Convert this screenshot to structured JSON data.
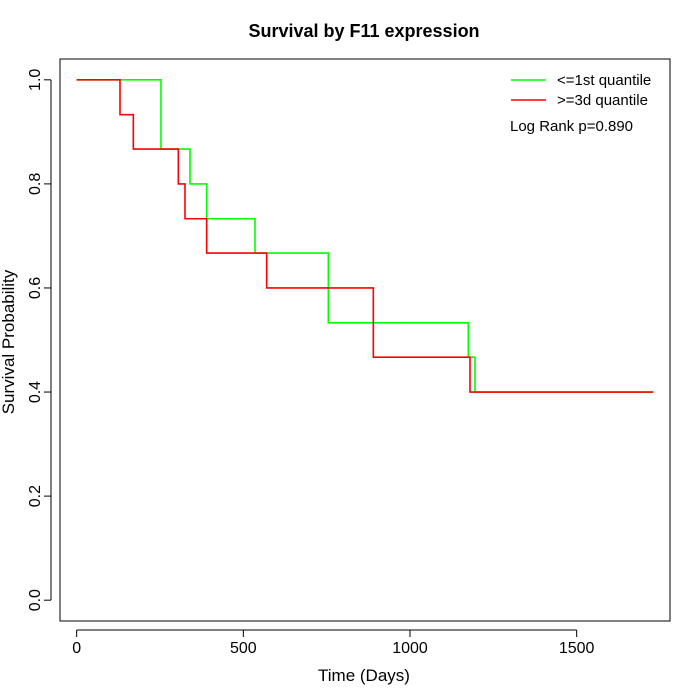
{
  "chart_data": {
    "type": "line",
    "subtype": "kaplan-meier step",
    "title": "Survival by F11 expression",
    "xlabel": "Time (Days)",
    "ylabel": "Survival Probability",
    "xlim": [
      -50,
      1780
    ],
    "ylim": [
      -0.04,
      1.04
    ],
    "xticks": [
      0,
      500,
      1000,
      1500
    ],
    "yticks": [
      0.0,
      0.2,
      0.4,
      0.6,
      0.8,
      1.0
    ],
    "xtick_labels": [
      "0",
      "500",
      "1000",
      "1500"
    ],
    "ytick_labels": [
      "0.0",
      "0.2",
      "0.4",
      "0.6",
      "0.8",
      "1.0"
    ],
    "grid": false,
    "legend_position": "top-right",
    "annotation": "Log Rank p=0.890",
    "series": [
      {
        "name": "<=1st quantile",
        "color": "#00ff00",
        "steps": [
          [
            0,
            1.0
          ],
          [
            253,
            0.867
          ],
          [
            340,
            0.8
          ],
          [
            390,
            0.733
          ],
          [
            535,
            0.667
          ],
          [
            755,
            0.533
          ],
          [
            1175,
            0.467
          ],
          [
            1195,
            0.4
          ],
          [
            1730,
            0.4
          ]
        ]
      },
      {
        "name": ">=3d quantile",
        "color": "#ff0000",
        "steps": [
          [
            0,
            1.0
          ],
          [
            130,
            0.933
          ],
          [
            170,
            0.867
          ],
          [
            305,
            0.8
          ],
          [
            325,
            0.733
          ],
          [
            390,
            0.667
          ],
          [
            570,
            0.6
          ],
          [
            890,
            0.467
          ],
          [
            1180,
            0.4
          ],
          [
            1730,
            0.4
          ]
        ]
      }
    ]
  }
}
